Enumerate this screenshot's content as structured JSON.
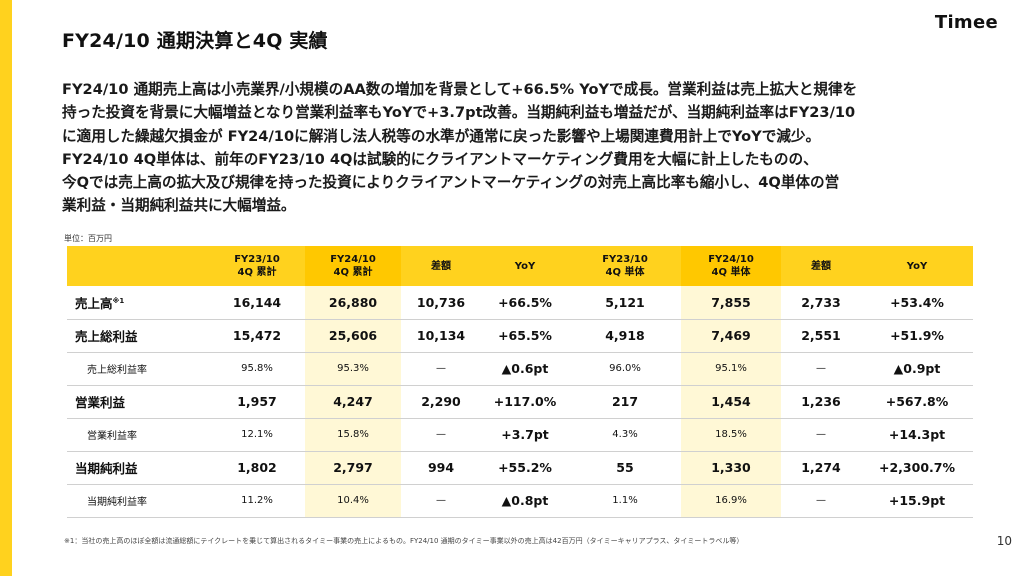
{
  "header": {
    "title": "FY24/10 通期決算と4Q 実績",
    "logo": "Timee"
  },
  "summary": [
    "FY24/10 通期売上高は小売業界/小規模のAA数の増加を背景として+66.5% YoYで成長。営業利益は売上拡大と規律を",
    "持った投資を背景に大幅増益となり営業利益率もYoYで+3.7pt改善。当期純利益も増益だが、当期純利益率はFY23/10",
    "に適用した繰越欠損金が FY24/10に解消し法人税等の水準が通常に戻った影響や上場関連費用計上でYoYで減少。",
    "FY24/10 4Q単体は、前年のFY23/10 4Qは試験的にクライアントマーケティング費用を大幅に計上したものの、",
    "今Qでは売上高の拡大及び規律を持った投資によりクライアントマーケティングの対売上高比率も縮小し、4Q単体の営",
    "業利益・当期純利益共に大幅増益。"
  ],
  "unit_label": "単位：百万円",
  "table": {
    "headers": [
      {
        "l1": "",
        "l2": ""
      },
      {
        "l1": "FY23/10",
        "l2": "4Q 累計"
      },
      {
        "l1": "FY24/10",
        "l2": "4Q 累計"
      },
      {
        "l1": "差額",
        "l2": ""
      },
      {
        "l1": "YoY",
        "l2": ""
      },
      {
        "l1": "FY23/10",
        "l2": "4Q 単体"
      },
      {
        "l1": "FY24/10",
        "l2": "4Q 単体"
      },
      {
        "l1": "差額",
        "l2": ""
      },
      {
        "l1": "YoY",
        "l2": ""
      }
    ],
    "rows": [
      {
        "label": "売上高",
        "note": "※1",
        "cells": [
          "16,144",
          "26,880",
          "10,736",
          "+66.5%",
          "5,121",
          "7,855",
          "2,733",
          "+53.4%"
        ]
      },
      {
        "label": "売上総利益",
        "note": "",
        "cells": [
          "15,472",
          "25,606",
          "10,134",
          "+65.5%",
          "4,918",
          "7,469",
          "2,551",
          "+51.9%"
        ]
      },
      {
        "label": "売上総利益率",
        "note": "",
        "cells": [
          "95.8%",
          "95.3%",
          "—",
          "▲0.6pt",
          "96.0%",
          "95.1%",
          "—",
          "▲0.9pt"
        ]
      },
      {
        "label": "営業利益",
        "note": "",
        "cells": [
          "1,957",
          "4,247",
          "2,290",
          "+117.0%",
          "217",
          "1,454",
          "1,236",
          "+567.8%"
        ]
      },
      {
        "label": "営業利益率",
        "note": "",
        "cells": [
          "12.1%",
          "15.8%",
          "—",
          "+3.7pt",
          "4.3%",
          "18.5%",
          "—",
          "+14.3pt"
        ]
      },
      {
        "label": "当期純利益",
        "note": "",
        "cells": [
          "1,802",
          "2,797",
          "994",
          "+55.2%",
          "55",
          "1,330",
          "1,274",
          "+2,300.7%"
        ]
      },
      {
        "label": "当期純利益率",
        "note": "",
        "cells": [
          "11.2%",
          "10.4%",
          "—",
          "▲0.8pt",
          "1.1%",
          "16.9%",
          "—",
          "+15.9pt"
        ]
      }
    ]
  },
  "footnote": "※1：当社の売上高のほぼ全額は流通総額にテイクレートを乗じて算出されるタイミー事業の売上によるもの。FY24/10 通期のタイミー事業以外の売上高は42百万円（タイミーキャリアプラス、タイミートラベル等）",
  "page_number": "10"
}
